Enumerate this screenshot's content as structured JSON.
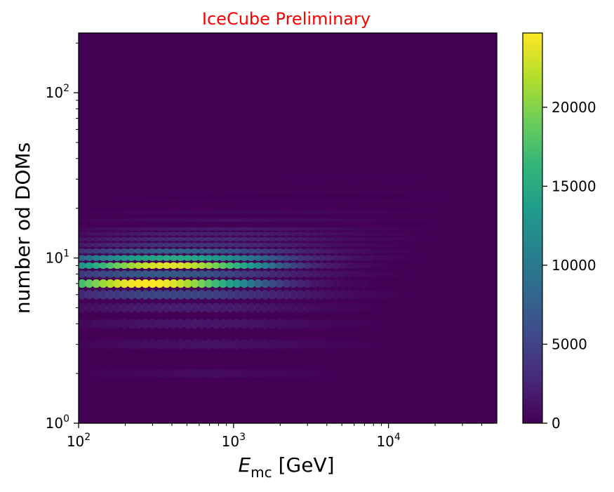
{
  "chart_data": {
    "type": "heatmap",
    "title": "IceCube Preliminary",
    "title_color": "#ff0000",
    "xlabel": {
      "symbol": "E",
      "subscript": "mc",
      "unit": "[GeV]"
    },
    "ylabel": "number od DOMs",
    "x_scale": "log",
    "y_scale": "log",
    "xlim": [
      100,
      50000
    ],
    "ylim": [
      1,
      230
    ],
    "x_ticks": [
      {
        "value": 100,
        "base": "10",
        "exp": "2"
      },
      {
        "value": 1000,
        "base": "10",
        "exp": "3"
      },
      {
        "value": 10000,
        "base": "10",
        "exp": "4"
      }
    ],
    "y_ticks": [
      {
        "value": 1,
        "base": "10",
        "exp": "0"
      },
      {
        "value": 10,
        "base": "10",
        "exp": "1"
      },
      {
        "value": 100,
        "base": "10",
        "exp": "2"
      }
    ],
    "colormap": "viridis",
    "colorbar": {
      "min": 0,
      "max": 24700,
      "ticks": [
        0,
        5000,
        10000,
        15000,
        20000
      ],
      "tick_labels": [
        "0",
        "5000",
        "10000",
        "15000",
        "20000"
      ]
    },
    "background_color": "#440154",
    "grid": false,
    "bands": [
      {
        "ndoms": 2,
        "peak_energy": 700,
        "peak_count": 1200,
        "log_width": 1.0
      },
      {
        "ndoms": 3,
        "peak_energy": 700,
        "peak_count": 1800,
        "log_width": 1.2
      },
      {
        "ndoms": 4,
        "peak_energy": 600,
        "peak_count": 2300,
        "log_width": 1.2
      },
      {
        "ndoms": 5,
        "peak_energy": 500,
        "peak_count": 2900,
        "log_width": 1.25
      },
      {
        "ndoms": 6,
        "peak_energy": 400,
        "peak_count": 6500,
        "log_width": 1.3
      },
      {
        "ndoms": 7,
        "peak_energy": 280,
        "peak_count": 24700,
        "log_width": 1.05
      },
      {
        "ndoms": 8,
        "peak_energy": 350,
        "peak_count": 8000,
        "log_width": 1.3
      },
      {
        "ndoms": 9,
        "peak_energy": 380,
        "peak_count": 23500,
        "log_width": 1.05
      },
      {
        "ndoms": 10,
        "peak_energy": 400,
        "peak_count": 15000,
        "log_width": 1.2
      },
      {
        "ndoms": 11,
        "peak_energy": 450,
        "peak_count": 8500,
        "log_width": 1.25
      },
      {
        "ndoms": 12,
        "peak_energy": 500,
        "peak_count": 5000,
        "log_width": 1.3
      },
      {
        "ndoms": 13,
        "peak_energy": 600,
        "peak_count": 4200,
        "log_width": 1.35
      },
      {
        "ndoms": 14,
        "peak_energy": 700,
        "peak_count": 3200,
        "log_width": 1.35
      },
      {
        "ndoms": 15,
        "peak_energy": 800,
        "peak_count": 2500,
        "log_width": 1.4
      },
      {
        "ndoms": 17,
        "peak_energy": 1000,
        "peak_count": 1600,
        "log_width": 1.5
      },
      {
        "ndoms": 19,
        "peak_energy": 1300,
        "peak_count": 1000,
        "log_width": 1.6
      },
      {
        "ndoms": 22,
        "peak_energy": 2000,
        "peak_count": 700,
        "log_width": 1.7
      },
      {
        "ndoms": 25,
        "peak_energy": 3000,
        "peak_count": 500,
        "log_width": 1.8
      },
      {
        "ndoms": 30,
        "peak_energy": 6000,
        "peak_count": 350,
        "log_width": 1.8
      }
    ]
  }
}
